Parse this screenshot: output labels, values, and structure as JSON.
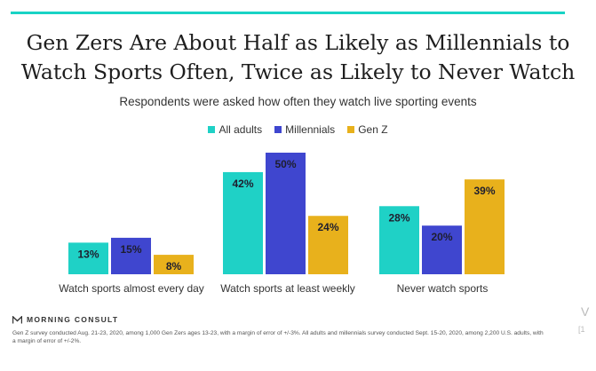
{
  "colors": {
    "accent_rule": "#19d3c5",
    "all_adults": "#1fd1c6",
    "millennials": "#3f46cf",
    "gen_z": "#e8b11c"
  },
  "chart_data": {
    "type": "bar",
    "title": "Gen Zers Are About Half as Likely as Millennials to Watch Sports Often, Twice as Likely to Never Watch",
    "title_lines": [
      "Gen Zers Are About Half as Likely as Millennials to",
      "Watch Sports Often, Twice as Likely to Never Watch"
    ],
    "subtitle": "Respondents were asked how often they watch live sporting events",
    "categories": [
      "Watch sports almost every day",
      "Watch sports at least weekly",
      "Never watch sports"
    ],
    "series": [
      {
        "name": "All adults",
        "values": [
          13,
          42,
          28
        ],
        "labels": [
          "13%",
          "42%",
          "28%"
        ],
        "color": "#1fd1c6"
      },
      {
        "name": "Millennials",
        "values": [
          15,
          50,
          20
        ],
        "labels": [
          "15%",
          "50%",
          "20%"
        ],
        "color": "#3f46cf"
      },
      {
        "name": "Gen Z",
        "values": [
          8,
          24,
          39
        ],
        "labels": [
          "8%",
          "24%",
          "39%"
        ],
        "color": "#e8b11c"
      }
    ],
    "value_unit": "%",
    "ylim": [
      0,
      50
    ],
    "grid": false,
    "legend_position": "top-center",
    "xlabel": "",
    "ylabel": ""
  },
  "footer": {
    "brand": "MORNING CONSULT",
    "brand_icon": "morning-consult-logo-icon",
    "note": "Gen Z survey conducted Aug. 21-23, 2020, among 1,000 Gen Zers ages 13-23, with a margin of error of +/-3%. All adults and millennials survey conducted Sept. 15-20, 2020, among 2,200 U.S. adults, with a margin of error of +/-2%.",
    "side_fragment_a": "V",
    "side_fragment_b": "[1"
  }
}
